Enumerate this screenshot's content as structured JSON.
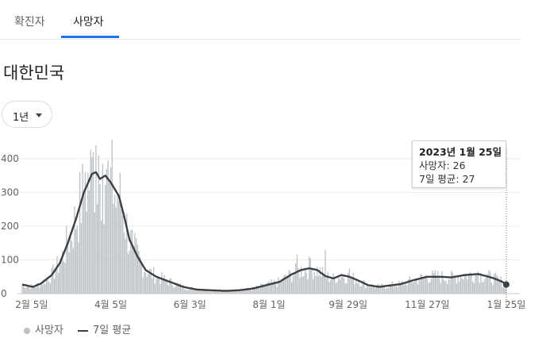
{
  "tabs": [
    {
      "label": "확진자",
      "active": false
    },
    {
      "label": "사망자",
      "active": true
    }
  ],
  "region_title": "대한민국",
  "range_selector": {
    "selected": "1년"
  },
  "tooltip": {
    "date": "2023년 1월 25일",
    "deaths_line": "사망자: 26",
    "avg_line": "7일 평균: 27"
  },
  "legend": {
    "daily": "사망자",
    "average": "7일 평균"
  },
  "colors": {
    "bars": "#bdc1c6",
    "average_line": "#3c4043",
    "grid": "#ebebeb",
    "active_tab": "#1a73e8"
  },
  "chart_data": {
    "type": "bar",
    "ylim": [
      0,
      450
    ],
    "yticks": [
      0,
      100,
      200,
      300,
      400
    ],
    "x_tick_labels": [
      "2월 5일",
      "4월 5일",
      "6월 3일",
      "8월 1일",
      "9월 29일",
      "11월 27일",
      "1월 25일"
    ],
    "x_tick_days": [
      7,
      66,
      125,
      184,
      243,
      302,
      361
    ],
    "day_count": 362,
    "avg_keypoints": [
      [
        0,
        27
      ],
      [
        8,
        20
      ],
      [
        14,
        30
      ],
      [
        22,
        55
      ],
      [
        28,
        90
      ],
      [
        34,
        150
      ],
      [
        40,
        220
      ],
      [
        46,
        300
      ],
      [
        52,
        355
      ],
      [
        55,
        360
      ],
      [
        58,
        340
      ],
      [
        62,
        350
      ],
      [
        66,
        330
      ],
      [
        72,
        290
      ],
      [
        76,
        230
      ],
      [
        80,
        160
      ],
      [
        86,
        110
      ],
      [
        92,
        70
      ],
      [
        100,
        50
      ],
      [
        110,
        35
      ],
      [
        120,
        20
      ],
      [
        130,
        12
      ],
      [
        140,
        10
      ],
      [
        152,
        8
      ],
      [
        162,
        10
      ],
      [
        172,
        15
      ],
      [
        182,
        25
      ],
      [
        192,
        35
      ],
      [
        200,
        55
      ],
      [
        208,
        70
      ],
      [
        214,
        75
      ],
      [
        220,
        70
      ],
      [
        226,
        52
      ],
      [
        232,
        45
      ],
      [
        238,
        55
      ],
      [
        244,
        50
      ],
      [
        250,
        40
      ],
      [
        258,
        25
      ],
      [
        266,
        20
      ],
      [
        274,
        24
      ],
      [
        282,
        28
      ],
      [
        292,
        40
      ],
      [
        302,
        50
      ],
      [
        312,
        50
      ],
      [
        320,
        48
      ],
      [
        330,
        55
      ],
      [
        340,
        58
      ],
      [
        346,
        52
      ],
      [
        352,
        45
      ],
      [
        358,
        35
      ],
      [
        361,
        27
      ]
    ],
    "bar_spikes": [
      [
        47,
        360
      ],
      [
        53,
        420
      ],
      [
        55,
        440
      ],
      [
        57,
        410
      ],
      [
        60,
        385
      ],
      [
        63,
        370
      ],
      [
        65,
        330
      ],
      [
        70,
        255
      ],
      [
        83,
        140
      ],
      [
        205,
        115
      ],
      [
        214,
        110
      ],
      [
        226,
        130
      ],
      [
        244,
        75
      ],
      [
        340,
        65
      ]
    ],
    "last_point": {
      "day": 361,
      "value": 26
    }
  }
}
